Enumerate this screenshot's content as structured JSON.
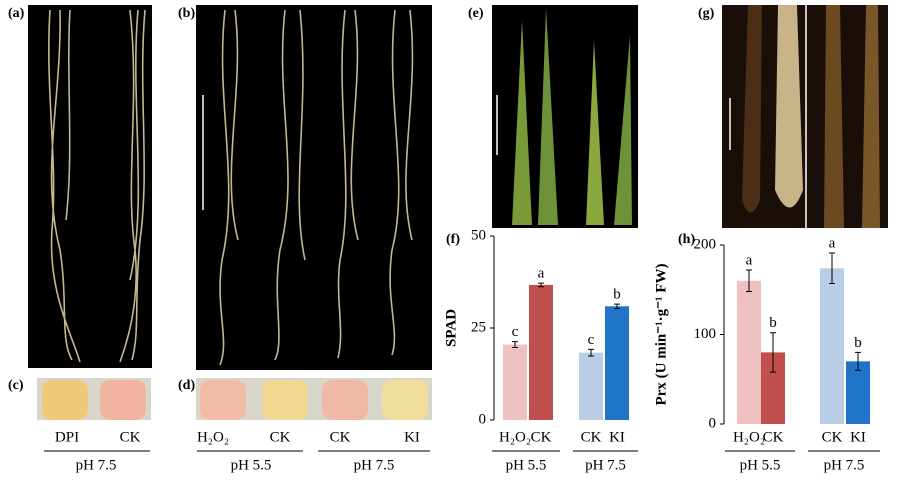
{
  "panel_labels": {
    "a": "(a)",
    "b": "(b)",
    "c": "(c)",
    "d": "(d)",
    "e": "(e)",
    "g": "(g)"
  },
  "panel_c": {
    "labels": [
      "DPI",
      "CK"
    ],
    "group_label": "pH 7.5"
  },
  "panel_d": {
    "labels": [
      "H₂O₂",
      "CK",
      "CK",
      "KI"
    ],
    "group_labels": [
      "pH 5.5",
      "pH 7.5"
    ]
  },
  "chart_data": [
    {
      "type": "bar",
      "panel": "(f)",
      "ylabel": "SPAD",
      "categories": [
        "H₂O₂",
        "CK",
        "CK",
        "KI"
      ],
      "values": [
        20.5,
        36.7,
        18.3,
        30.9
      ],
      "errors": [
        0.8,
        0.5,
        0.9,
        0.6
      ],
      "colors": [
        "#efc1c1",
        "#c0504d",
        "#b9cde6",
        "#1f73c8"
      ],
      "annotations": [
        "c",
        "a",
        "c",
        "b"
      ],
      "group_labels": [
        "pH 5.5",
        "pH 7.5"
      ],
      "ylim": [
        0,
        50
      ],
      "yticks": [
        0,
        25,
        50
      ]
    },
    {
      "type": "bar",
      "panel": "(h)",
      "ylabel": "Prx (U min⁻¹·g⁻¹ FW)",
      "categories": [
        "H₂O₂",
        "CK",
        "CK",
        "KI"
      ],
      "values": [
        160,
        80,
        174,
        70
      ],
      "errors": [
        12,
        22,
        17,
        10
      ],
      "colors": [
        "#efc1c1",
        "#c0504d",
        "#b9cde6",
        "#1f73c8"
      ],
      "annotations": [
        "a",
        "b",
        "a",
        "b"
      ],
      "group_labels": [
        "pH 5.5",
        "pH 7.5"
      ],
      "ylim": [
        0,
        200
      ],
      "yticks": [
        0,
        100,
        200
      ]
    }
  ]
}
